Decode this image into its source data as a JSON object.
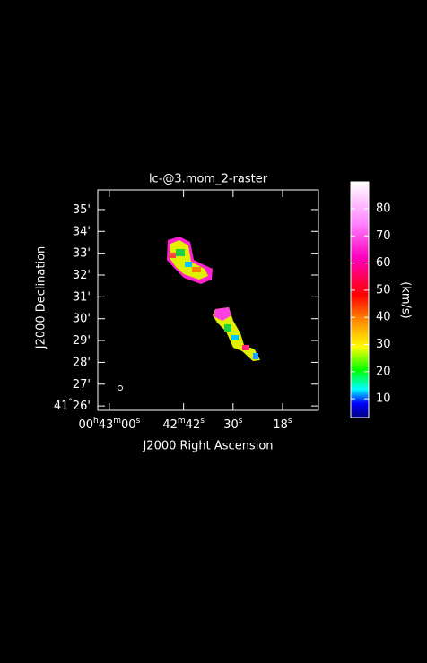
{
  "chart_data": {
    "type": "raster",
    "title": "lc-@3.mom_2-raster",
    "x_label": "J2000 Right Ascension",
    "y_label": "J2000 Declination",
    "xlim": [
      2582.8,
      2529.3
    ],
    "xticks": [
      {
        "value": 2580,
        "label": "00h43m00s"
      },
      {
        "value": 2562,
        "label": "42m42s"
      },
      {
        "value": 2550,
        "label": "30s"
      },
      {
        "value": 2538,
        "label": "18s"
      }
    ],
    "ylim": [
      25.8,
      35.9
    ],
    "yticks": [
      {
        "value": 26,
        "label": "41°26'"
      },
      {
        "value": 27,
        "label": "27'"
      },
      {
        "value": 28,
        "label": "28'"
      },
      {
        "value": 29,
        "label": "29'"
      },
      {
        "value": 30,
        "label": "30'"
      },
      {
        "value": 31,
        "label": "31'"
      },
      {
        "value": 32,
        "label": "32'"
      },
      {
        "value": 33,
        "label": "33'"
      },
      {
        "value": 34,
        "label": "34'"
      },
      {
        "value": 35,
        "label": "35'"
      }
    ],
    "colorbar": {
      "label": "(km/s)",
      "lim": [
        3.1,
        89.9
      ],
      "ticks": [
        10,
        20,
        30,
        40,
        50,
        60,
        70,
        80
      ]
    }
  }
}
